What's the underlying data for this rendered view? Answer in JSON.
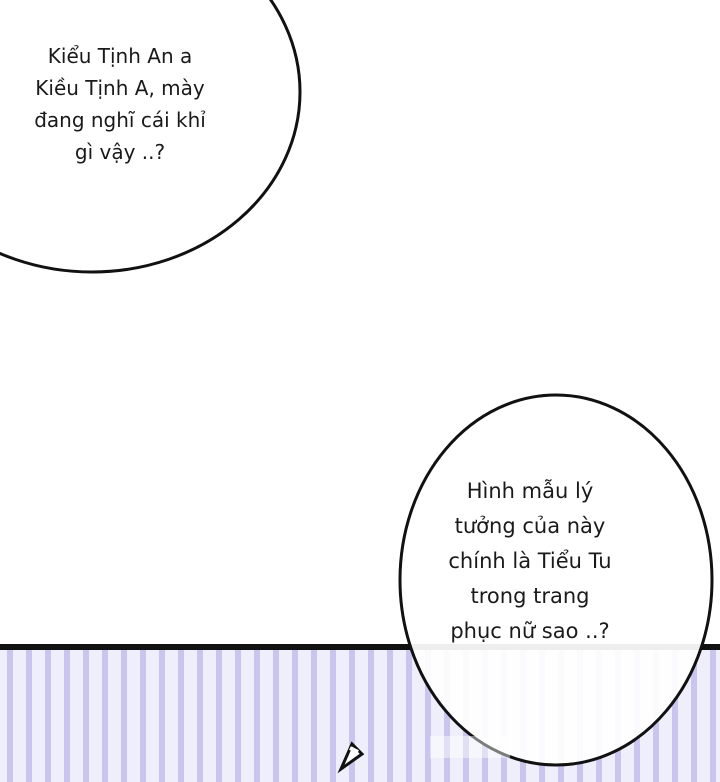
{
  "bubble_top_left": {
    "lines": [
      "Kiểu Tịnh An a",
      "Kiều Tịnh A, mày",
      "đang nghĩ cái khỉ",
      "gì vậy ..?"
    ]
  },
  "bubble_bottom_right": {
    "lines": [
      "Hình mẫu lý",
      "tưởng của này",
      "chính là Tiểu Tu",
      "trong trang",
      "phục nữ sao ..?"
    ]
  },
  "colors": {
    "stripe": "#c9c5ee",
    "stripe_bg": "#efeefb",
    "outline": "#111111"
  }
}
